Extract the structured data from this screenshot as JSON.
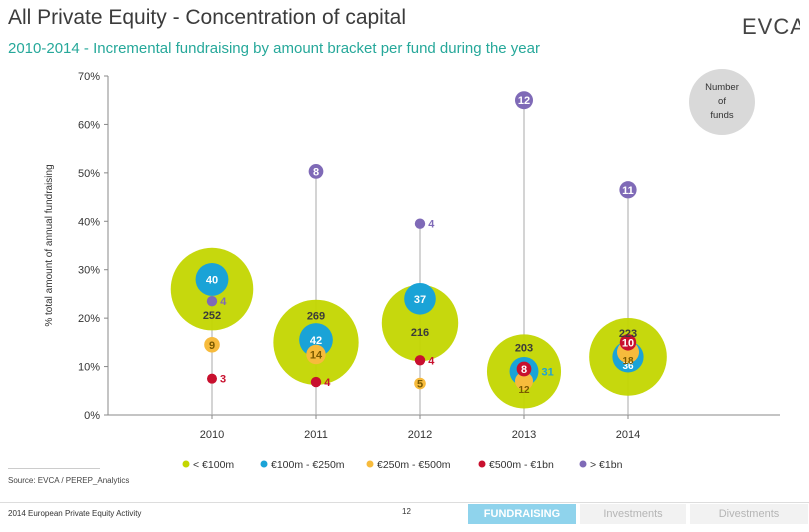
{
  "header": {
    "title": "All Private Equity - Concentration of capital",
    "subtitle": "2010-2014 - Incremental fundraising by amount bracket per fund during the year",
    "logo_text": "EVCA"
  },
  "chart_data": {
    "type": "scatter",
    "ylabel": "% total amount of annual fundraising",
    "xlabel": "",
    "categories": [
      "2010",
      "2011",
      "2012",
      "2013",
      "2014"
    ],
    "ylim": [
      0,
      70
    ],
    "yticks": [
      "0%",
      "10%",
      "20%",
      "30%",
      "40%",
      "50%",
      "60%",
      "70%"
    ],
    "size_legend_label": [
      "Number",
      "of",
      "funds"
    ],
    "grid": false,
    "legend_position": "bottom",
    "series": [
      {
        "name": "< €100m",
        "color": "#c3d600",
        "points": [
          {
            "x": "2010",
            "y": 26,
            "n": "252"
          },
          {
            "x": "2011",
            "y": 15,
            "n": "269"
          },
          {
            "x": "2012",
            "y": 19,
            "n": "216"
          },
          {
            "x": "2013",
            "y": 9,
            "n": "203"
          },
          {
            "x": "2014",
            "y": 12,
            "n": "223"
          }
        ]
      },
      {
        "name": "€100m - €250m",
        "color": "#1aa3d7",
        "points": [
          {
            "x": "2010",
            "y": 28,
            "n": "40"
          },
          {
            "x": "2011",
            "y": 15.5,
            "n": "42"
          },
          {
            "x": "2012",
            "y": 24,
            "n": "37"
          },
          {
            "x": "2013",
            "y": 9,
            "n": "31"
          },
          {
            "x": "2014",
            "y": 12,
            "n": "36"
          }
        ]
      },
      {
        "name": "€250m - €500m",
        "color": "#f7bb3c",
        "points": [
          {
            "x": "2010",
            "y": 14.5,
            "n": "9"
          },
          {
            "x": "2011",
            "y": 12.5,
            "n": "14"
          },
          {
            "x": "2012",
            "y": 6.5,
            "n": "5"
          },
          {
            "x": "2013",
            "y": 7,
            "n": "12"
          },
          {
            "x": "2014",
            "y": 13,
            "n": "18"
          }
        ]
      },
      {
        "name": "€500m - €1bn",
        "color": "#c8102e",
        "points": [
          {
            "x": "2010",
            "y": 7.5,
            "n": "3"
          },
          {
            "x": "2011",
            "y": 6.8,
            "n": "4"
          },
          {
            "x": "2012",
            "y": 11.3,
            "n": "4"
          },
          {
            "x": "2013",
            "y": 9.5,
            "n": "8"
          },
          {
            "x": "2014",
            "y": 15,
            "n": "10"
          }
        ]
      },
      {
        "name": "> €1bn",
        "color": "#7f6ab7",
        "points": [
          {
            "x": "2010",
            "y": 23.5,
            "n": "4"
          },
          {
            "x": "2011",
            "y": 50.3,
            "n": "8"
          },
          {
            "x": "2012",
            "y": 39.5,
            "n": "4"
          },
          {
            "x": "2013",
            "y": 65,
            "n": "12"
          },
          {
            "x": "2014",
            "y": 46.5,
            "n": "11"
          }
        ]
      }
    ]
  },
  "footer": {
    "source": "Source: EVCA / PEREP_Analytics",
    "report": "2014 European Private Equity Activity",
    "page": "12",
    "nav": [
      "FUNDRAISING",
      "Investments",
      "Divestments"
    ]
  }
}
